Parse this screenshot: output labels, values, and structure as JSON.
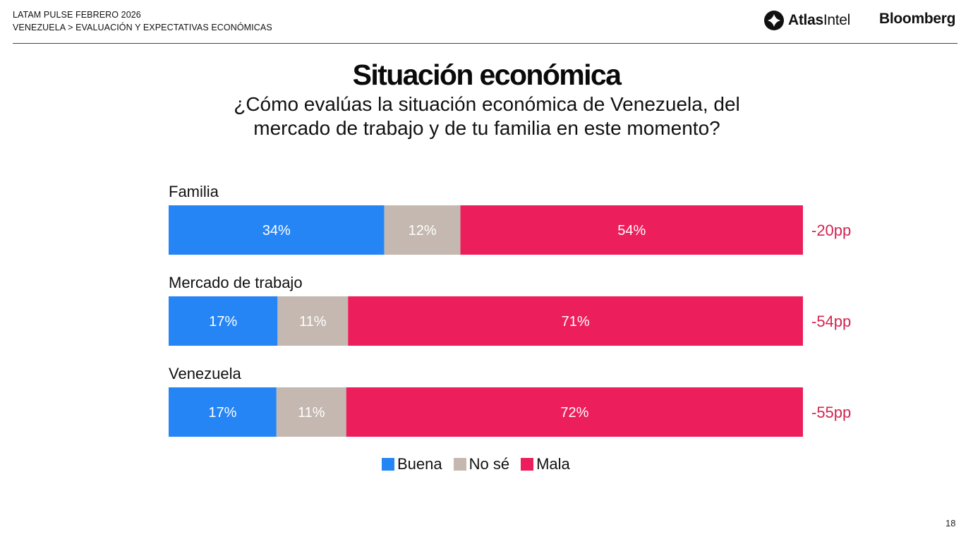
{
  "header": {
    "line1": "LATAM PULSE FEBRERO 2026",
    "line2": "VENEZUELA > EVALUACIÓN Y EXPECTATIVAS ECONÓMICAS",
    "logo_atlas_bold": "Atlas",
    "logo_atlas_light": "Intel",
    "logo_bloomberg": "Bloomberg"
  },
  "page_number": "18",
  "chart_data": {
    "type": "bar",
    "orientation": "horizontal-stacked",
    "title": "Situación económica",
    "subtitle": "¿Cómo evalúas la situación económica de Venezuela, del mercado de trabajo y de tu familia en este momento?",
    "categories": [
      "Familia",
      "Mercado de trabajo",
      "Venezuela"
    ],
    "series": [
      {
        "name": "Buena",
        "color": "#2585F5",
        "values": [
          34,
          17,
          17
        ]
      },
      {
        "name": "No sé",
        "color": "#C4B8B0",
        "values": [
          12,
          11,
          11
        ]
      },
      {
        "name": "Mala",
        "color": "#EC1E5B",
        "values": [
          54,
          71,
          72
        ]
      }
    ],
    "net_labels": [
      "-20pp",
      "-54pp",
      "-55pp"
    ],
    "net_color": "#D4244F",
    "value_suffix": "%",
    "xlim": [
      0,
      100
    ],
    "legend": "bottom-center",
    "grid": false
  }
}
